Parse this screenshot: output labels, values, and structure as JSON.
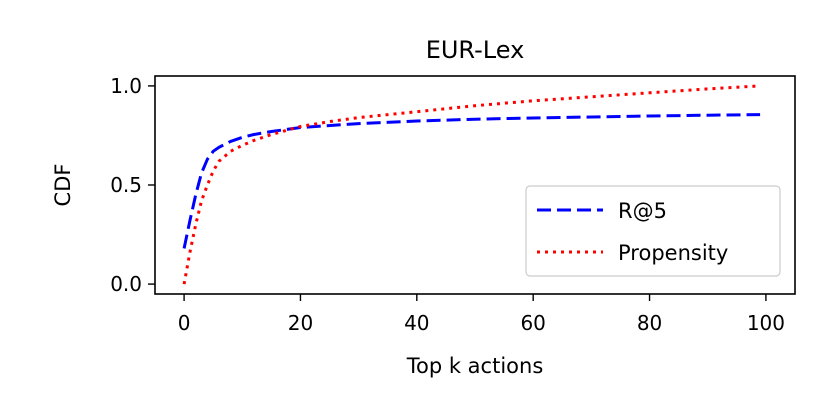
{
  "chart_data": {
    "type": "line",
    "title": "EUR-Lex",
    "xlabel": "Top k actions",
    "ylabel": "CDF",
    "xlim": [
      -5,
      105
    ],
    "ylim": [
      -0.05,
      1.05
    ],
    "xticks": [
      0,
      20,
      40,
      60,
      80,
      100
    ],
    "xtick_labels": [
      "0",
      "20",
      "40",
      "60",
      "80",
      "100"
    ],
    "yticks": [
      0.0,
      0.5,
      1.0
    ],
    "ytick_labels": [
      "0.0",
      "0.5",
      "1.0"
    ],
    "grid": false,
    "legend_position": "lower-right",
    "series": [
      {
        "name": "R@5",
        "color": "#0000ff",
        "style": "dashed",
        "x": [
          0,
          1,
          2,
          3,
          4,
          5,
          6,
          8,
          10,
          12,
          15,
          20,
          30,
          40,
          50,
          60,
          70,
          80,
          90,
          99
        ],
        "y": [
          0.18,
          0.32,
          0.45,
          0.56,
          0.63,
          0.67,
          0.69,
          0.72,
          0.74,
          0.755,
          0.77,
          0.79,
          0.81,
          0.823,
          0.832,
          0.838,
          0.843,
          0.848,
          0.852,
          0.855
        ]
      },
      {
        "name": "Propensity",
        "color": "#ff0000",
        "style": "dotted",
        "x": [
          0,
          1,
          2,
          3,
          4,
          5,
          6,
          8,
          10,
          12,
          15,
          20,
          25,
          30,
          40,
          50,
          60,
          70,
          80,
          90,
          99
        ],
        "y": [
          0.0,
          0.16,
          0.3,
          0.42,
          0.5,
          0.57,
          0.62,
          0.67,
          0.7,
          0.725,
          0.755,
          0.795,
          0.82,
          0.84,
          0.87,
          0.9,
          0.925,
          0.945,
          0.965,
          0.985,
          1.0
        ]
      }
    ]
  }
}
